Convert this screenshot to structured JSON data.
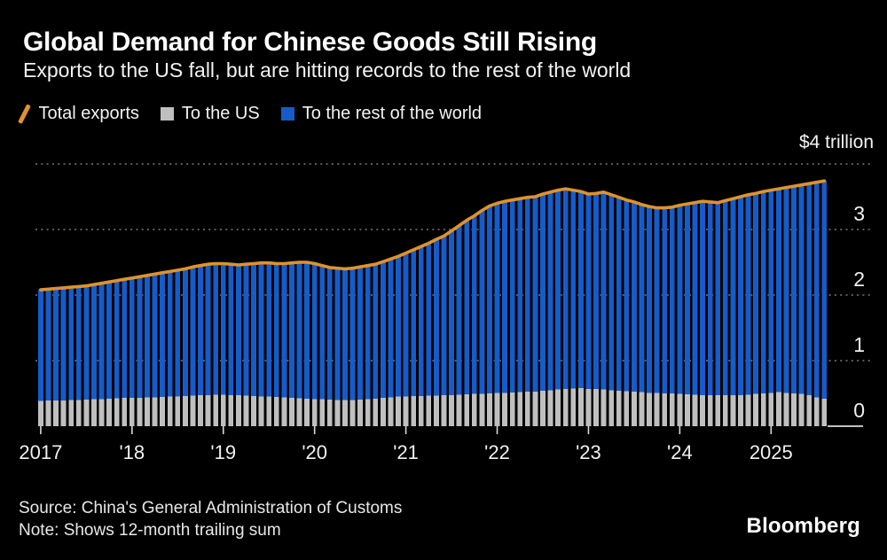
{
  "header": {
    "title": "Global Demand for Chinese Goods Still Rising",
    "subtitle": "Exports to the US fall, but are hitting records to the rest of the world"
  },
  "legend": {
    "items": [
      {
        "label": "Total exports",
        "marker": "orange-slash"
      },
      {
        "label": "To the US",
        "marker": "gray-square"
      },
      {
        "label": "To the rest of the world",
        "marker": "blue-square"
      }
    ]
  },
  "chart_data": {
    "type": "bar",
    "subtype": "monthly stacked bars with total-exports line overlay",
    "title": "Global Demand for Chinese Goods Still Rising",
    "unit": "USD trillions, 12-month trailing sum",
    "x": {
      "start": "2017-01",
      "end": "2025-08",
      "frequency": "monthly",
      "count": 104
    },
    "x_ticks": [
      {
        "label": "2017",
        "month_index": 0
      },
      {
        "label": "'18",
        "month_index": 12
      },
      {
        "label": "'19",
        "month_index": 24
      },
      {
        "label": "'20",
        "month_index": 36
      },
      {
        "label": "'21",
        "month_index": 48
      },
      {
        "label": "'22",
        "month_index": 60
      },
      {
        "label": "'23",
        "month_index": 72
      },
      {
        "label": "'24",
        "month_index": 84
      },
      {
        "label": "2025",
        "month_index": 96
      }
    ],
    "y_axis": {
      "range": [
        0,
        4
      ],
      "tick_values": [
        0,
        1,
        2,
        3
      ],
      "tick_labels": [
        "0",
        "1",
        "2",
        "3"
      ],
      "top_label": "$4 trillion",
      "gridline_style": "dotted",
      "grid_color": "#7a7a7a"
    },
    "legend_position": "top",
    "background_color": "#000000",
    "series": [
      {
        "name": "Total exports",
        "render": "line",
        "color": "#E0922D",
        "values": [
          2.08,
          2.09,
          2.1,
          2.11,
          2.12,
          2.13,
          2.14,
          2.16,
          2.18,
          2.2,
          2.22,
          2.24,
          2.26,
          2.28,
          2.3,
          2.32,
          2.34,
          2.36,
          2.38,
          2.4,
          2.43,
          2.45,
          2.47,
          2.48,
          2.48,
          2.47,
          2.46,
          2.47,
          2.48,
          2.49,
          2.49,
          2.48,
          2.48,
          2.49,
          2.5,
          2.5,
          2.48,
          2.45,
          2.42,
          2.41,
          2.4,
          2.41,
          2.43,
          2.45,
          2.47,
          2.51,
          2.55,
          2.59,
          2.64,
          2.69,
          2.74,
          2.79,
          2.85,
          2.9,
          2.98,
          3.06,
          3.14,
          3.21,
          3.29,
          3.36,
          3.4,
          3.43,
          3.45,
          3.47,
          3.49,
          3.5,
          3.54,
          3.57,
          3.6,
          3.62,
          3.6,
          3.58,
          3.54,
          3.55,
          3.57,
          3.53,
          3.49,
          3.45,
          3.42,
          3.38,
          3.35,
          3.33,
          3.33,
          3.34,
          3.37,
          3.39,
          3.41,
          3.43,
          3.42,
          3.41,
          3.44,
          3.47,
          3.5,
          3.53,
          3.55,
          3.58,
          3.6,
          3.62,
          3.64,
          3.66,
          3.68,
          3.7,
          3.72,
          3.74
        ]
      },
      {
        "name": "To the US",
        "render": "bar",
        "stack_order": 0,
        "color": "#BFBFBF",
        "values": [
          0.385,
          0.39,
          0.39,
          0.395,
          0.4,
          0.4,
          0.405,
          0.41,
          0.415,
          0.42,
          0.425,
          0.43,
          0.43,
          0.435,
          0.44,
          0.44,
          0.445,
          0.45,
          0.455,
          0.46,
          0.465,
          0.47,
          0.475,
          0.48,
          0.48,
          0.475,
          0.47,
          0.465,
          0.46,
          0.455,
          0.45,
          0.445,
          0.44,
          0.43,
          0.425,
          0.42,
          0.415,
          0.41,
          0.405,
          0.4,
          0.4,
          0.4,
          0.405,
          0.41,
          0.42,
          0.43,
          0.44,
          0.45,
          0.455,
          0.46,
          0.46,
          0.465,
          0.465,
          0.47,
          0.475,
          0.48,
          0.485,
          0.49,
          0.495,
          0.5,
          0.505,
          0.51,
          0.515,
          0.52,
          0.525,
          0.53,
          0.54,
          0.55,
          0.56,
          0.57,
          0.575,
          0.58,
          0.57,
          0.565,
          0.56,
          0.55,
          0.54,
          0.535,
          0.53,
          0.52,
          0.51,
          0.505,
          0.5,
          0.5,
          0.49,
          0.485,
          0.48,
          0.475,
          0.475,
          0.47,
          0.47,
          0.47,
          0.475,
          0.48,
          0.49,
          0.5,
          0.51,
          0.52,
          0.51,
          0.5,
          0.49,
          0.47,
          0.44,
          0.42
        ]
      },
      {
        "name": "To the rest of the world",
        "render": "bar",
        "stack_order": 1,
        "color": "#155CC9",
        "values": [
          1.695,
          1.7,
          1.71,
          1.715,
          1.72,
          1.73,
          1.735,
          1.75,
          1.765,
          1.78,
          1.795,
          1.81,
          1.83,
          1.845,
          1.86,
          1.88,
          1.895,
          1.91,
          1.925,
          1.94,
          1.965,
          1.98,
          1.995,
          2.0,
          2.0,
          1.995,
          1.99,
          2.005,
          2.02,
          2.035,
          2.04,
          2.035,
          2.04,
          2.06,
          2.075,
          2.08,
          2.065,
          2.04,
          2.015,
          2.01,
          2.0,
          2.01,
          2.025,
          2.04,
          2.05,
          2.08,
          2.11,
          2.14,
          2.185,
          2.23,
          2.28,
          2.325,
          2.385,
          2.43,
          2.505,
          2.58,
          2.655,
          2.72,
          2.795,
          2.86,
          2.895,
          2.92,
          2.935,
          2.95,
          2.965,
          2.97,
          3.0,
          3.02,
          3.04,
          3.05,
          3.025,
          3.0,
          2.97,
          2.985,
          3.01,
          2.98,
          2.95,
          2.915,
          2.89,
          2.86,
          2.84,
          2.825,
          2.83,
          2.84,
          2.88,
          2.905,
          2.93,
          2.955,
          2.945,
          2.94,
          2.97,
          3.0,
          3.025,
          3.05,
          3.06,
          3.08,
          3.09,
          3.1,
          3.13,
          3.16,
          3.19,
          3.23,
          3.28,
          3.32
        ]
      }
    ]
  },
  "footer": {
    "source": "Source: China's General Administration of Customs",
    "note": "Note: Shows 12-month trailing sum",
    "logo": "Bloomberg"
  }
}
